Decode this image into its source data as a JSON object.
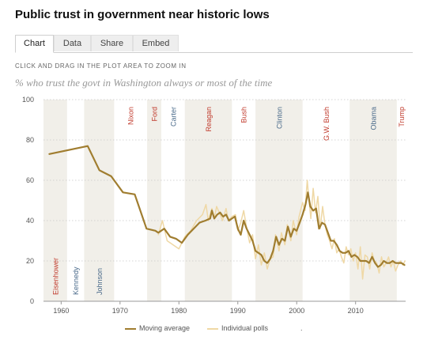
{
  "header": {
    "title": "Public trust in government near historic lows"
  },
  "tabs": [
    {
      "label": "Chart",
      "active": true
    },
    {
      "label": "Data",
      "active": false
    },
    {
      "label": "Share",
      "active": false
    },
    {
      "label": "Embed",
      "active": false
    }
  ],
  "hint": "CLICK AND DRAG IN THE PLOT AREA TO ZOOM IN",
  "subtitle": "% who trust the govt in Washington always or most of the time",
  "colors": {
    "moving_average": "#a07d2f",
    "individual_polls": "#efd8a5",
    "republican": "#c0392b",
    "democrat": "#4a6a8a",
    "shade": "#f1efe9"
  },
  "chart_data": {
    "type": "line",
    "ylim": [
      0,
      100
    ],
    "xlim": [
      1957,
      2018.5
    ],
    "y_ticks": [
      "0",
      "20",
      "40",
      "60",
      "80",
      "100"
    ],
    "x_ticks": [
      "1960",
      "1970",
      "1980",
      "1990",
      "2000",
      "2010"
    ],
    "grid": true,
    "legend": [
      "Moving average",
      "Individual polls"
    ],
    "legend_extra": ".",
    "presidents": [
      {
        "name": "Eisenhower",
        "start": 1957,
        "end": 1961,
        "party": "R",
        "label_pos": "bottom",
        "shaded": true
      },
      {
        "name": "Kennedy",
        "start": 1961,
        "end": 1963.9,
        "party": "D",
        "label_pos": "bottom",
        "shaded": false
      },
      {
        "name": "Johnson",
        "start": 1963.9,
        "end": 1969,
        "party": "D",
        "label_pos": "bottom",
        "shaded": true
      },
      {
        "name": "Nixon",
        "start": 1969,
        "end": 1974.6,
        "party": "R",
        "label_pos": "top",
        "shaded": false
      },
      {
        "name": "Ford",
        "start": 1974.6,
        "end": 1977,
        "party": "R",
        "label_pos": "top",
        "shaded": true
      },
      {
        "name": "Carter",
        "start": 1977,
        "end": 1981,
        "party": "D",
        "label_pos": "top",
        "shaded": false
      },
      {
        "name": "Reagan",
        "start": 1981,
        "end": 1989,
        "party": "R",
        "label_pos": "top",
        "shaded": true
      },
      {
        "name": "Bush",
        "start": 1989,
        "end": 1993,
        "party": "R",
        "label_pos": "top",
        "shaded": false
      },
      {
        "name": "Clinton",
        "start": 1993,
        "end": 2001,
        "party": "D",
        "label_pos": "top",
        "shaded": true
      },
      {
        "name": "G.W. Bush",
        "start": 2001,
        "end": 2009,
        "party": "R",
        "label_pos": "top",
        "shaded": false
      },
      {
        "name": "Obama",
        "start": 2009,
        "end": 2017,
        "party": "D",
        "label_pos": "top",
        "shaded": true
      },
      {
        "name": "Trump",
        "start": 2017,
        "end": 2018.5,
        "party": "R",
        "label_pos": "top",
        "shaded": false
      }
    ],
    "series": [
      {
        "name": "Moving average",
        "x": [
          1958,
          1964.5,
          1966.5,
          1968.5,
          1970.5,
          1972.5,
          1974.5,
          1976,
          1976.5,
          1977.5,
          1978.5,
          1979.5,
          1980.5,
          1981.5,
          1982.5,
          1983.5,
          1984.5,
          1985.3,
          1985.6,
          1986,
          1986.5,
          1987,
          1987.5,
          1988,
          1988.5,
          1989,
          1989.5,
          1990,
          1990.5,
          1991,
          1991.5,
          1992,
          1992.5,
          1993,
          1993.5,
          1994,
          1994.5,
          1995,
          1995.5,
          1996,
          1996.5,
          1997,
          1997.5,
          1998,
          1998.5,
          1999,
          1999.5,
          2000,
          2000.5,
          2001,
          2001.5,
          2001.9,
          2002.3,
          2002.8,
          2003.3,
          2003.8,
          2004.3,
          2004.8,
          2005.3,
          2005.8,
          2006.3,
          2006.8,
          2007.3,
          2007.8,
          2008.3,
          2008.8,
          2009.3,
          2009.8,
          2010.3,
          2010.8,
          2011.3,
          2011.8,
          2012.3,
          2012.8,
          2013.3,
          2013.8,
          2014.3,
          2014.8,
          2015.3,
          2015.8,
          2016.3,
          2016.8,
          2017.3,
          2017.8,
          2018.3
        ],
        "y": [
          73,
          77,
          65,
          62,
          54,
          53,
          36,
          35,
          34,
          36,
          32,
          31,
          29,
          33,
          36,
          39,
          40,
          41,
          45,
          41,
          43,
          44,
          42,
          43,
          40,
          41,
          42,
          36,
          33,
          40,
          36,
          33,
          30,
          25,
          24,
          23,
          20,
          19,
          21,
          25,
          32,
          28,
          31,
          30,
          37,
          32,
          36,
          35,
          39,
          43,
          48,
          54,
          47,
          45,
          46,
          36,
          39,
          38,
          34,
          30,
          30,
          28,
          25,
          24,
          24,
          25,
          22,
          23,
          22,
          20,
          20,
          20,
          19,
          22,
          19,
          17,
          18,
          20,
          19,
          19,
          20,
          19,
          19,
          19,
          18
        ]
      },
      {
        "name": "Individual polls",
        "x": [
          1976.5,
          1977.2,
          1978,
          1980,
          1981,
          1982,
          1983,
          1984,
          1984.6,
          1985,
          1985.6,
          1986,
          1986.4,
          1987,
          1987.4,
          1988,
          1988.4,
          1989,
          1989.6,
          1990,
          1990.5,
          1991,
          1991.4,
          1992,
          1992.5,
          1993,
          1993.5,
          1994,
          1994.5,
          1995,
          1995.5,
          1996,
          1996.4,
          1997,
          1997.4,
          1998,
          1998.4,
          1999,
          1999.4,
          2000,
          2000.4,
          2001,
          2001.4,
          2001.8,
          2002,
          2002.4,
          2002.8,
          2003.2,
          2003.6,
          2004,
          2004.4,
          2004.8,
          2005.2,
          2005.6,
          2006,
          2006.4,
          2006.8,
          2007.2,
          2007.6,
          2008,
          2008.4,
          2008.8,
          2009.2,
          2009.6,
          2010,
          2010.4,
          2010.8,
          2011.2,
          2011.6,
          2012,
          2012.4,
          2012.8,
          2013.2,
          2013.6,
          2014,
          2014.4,
          2014.8,
          2015.2,
          2015.6,
          2016,
          2016.4,
          2016.8,
          2017.2,
          2017.6,
          2018,
          2018.4
        ],
        "y": [
          33,
          40,
          30,
          26,
          32,
          35,
          40,
          43,
          48,
          40,
          46,
          41,
          47,
          43,
          40,
          46,
          40,
          42,
          43,
          35,
          39,
          45,
          38,
          29,
          33,
          21,
          28,
          18,
          24,
          16,
          21,
          22,
          33,
          25,
          34,
          28,
          38,
          30,
          40,
          33,
          42,
          49,
          45,
          60,
          53,
          41,
          56,
          44,
          52,
          36,
          47,
          38,
          33,
          30,
          26,
          31,
          24,
          26,
          22,
          19,
          27,
          23,
          26,
          20,
          24,
          16,
          27,
          11,
          23,
          22,
          16,
          24,
          20,
          19,
          14,
          22,
          17,
          19,
          22,
          17,
          20,
          15,
          18,
          20,
          18,
          20
        ]
      }
    ]
  }
}
